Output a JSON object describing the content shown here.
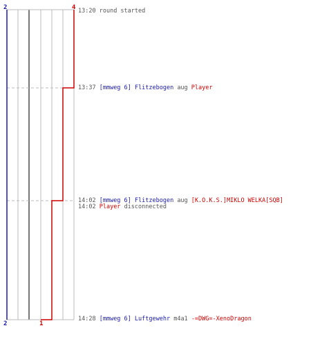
{
  "colors": {
    "blue_team": "#1a1aa8",
    "red_team": "#cc0000",
    "grid": "#bbbbbb",
    "grid_bold": "#777777",
    "time_text": "#555555"
  },
  "scores": {
    "blue_top": "2",
    "red_top": "4",
    "blue_bottom": "2",
    "red_bottom": "1"
  },
  "events": [
    {
      "time": "13:20",
      "text": "round started"
    },
    {
      "time": "13:37",
      "killer": "[mmweg 6] Flitzebogen",
      "weapon": "aug",
      "victim": "Player"
    },
    {
      "time": "14:02",
      "killer": "[mmweg 6] Flitzebogen",
      "weapon": "aug",
      "victim": "[K.O.K.S.]MIKLO WELKA[SQB]"
    },
    {
      "time": "14:02",
      "player": "Player",
      "text": "disconnected"
    },
    {
      "time": "14:28",
      "killer": "[mmweg 6] Luftgewehr",
      "weapon": "m4a1",
      "victim": "-=DWG=-XenoDragon"
    }
  ]
}
